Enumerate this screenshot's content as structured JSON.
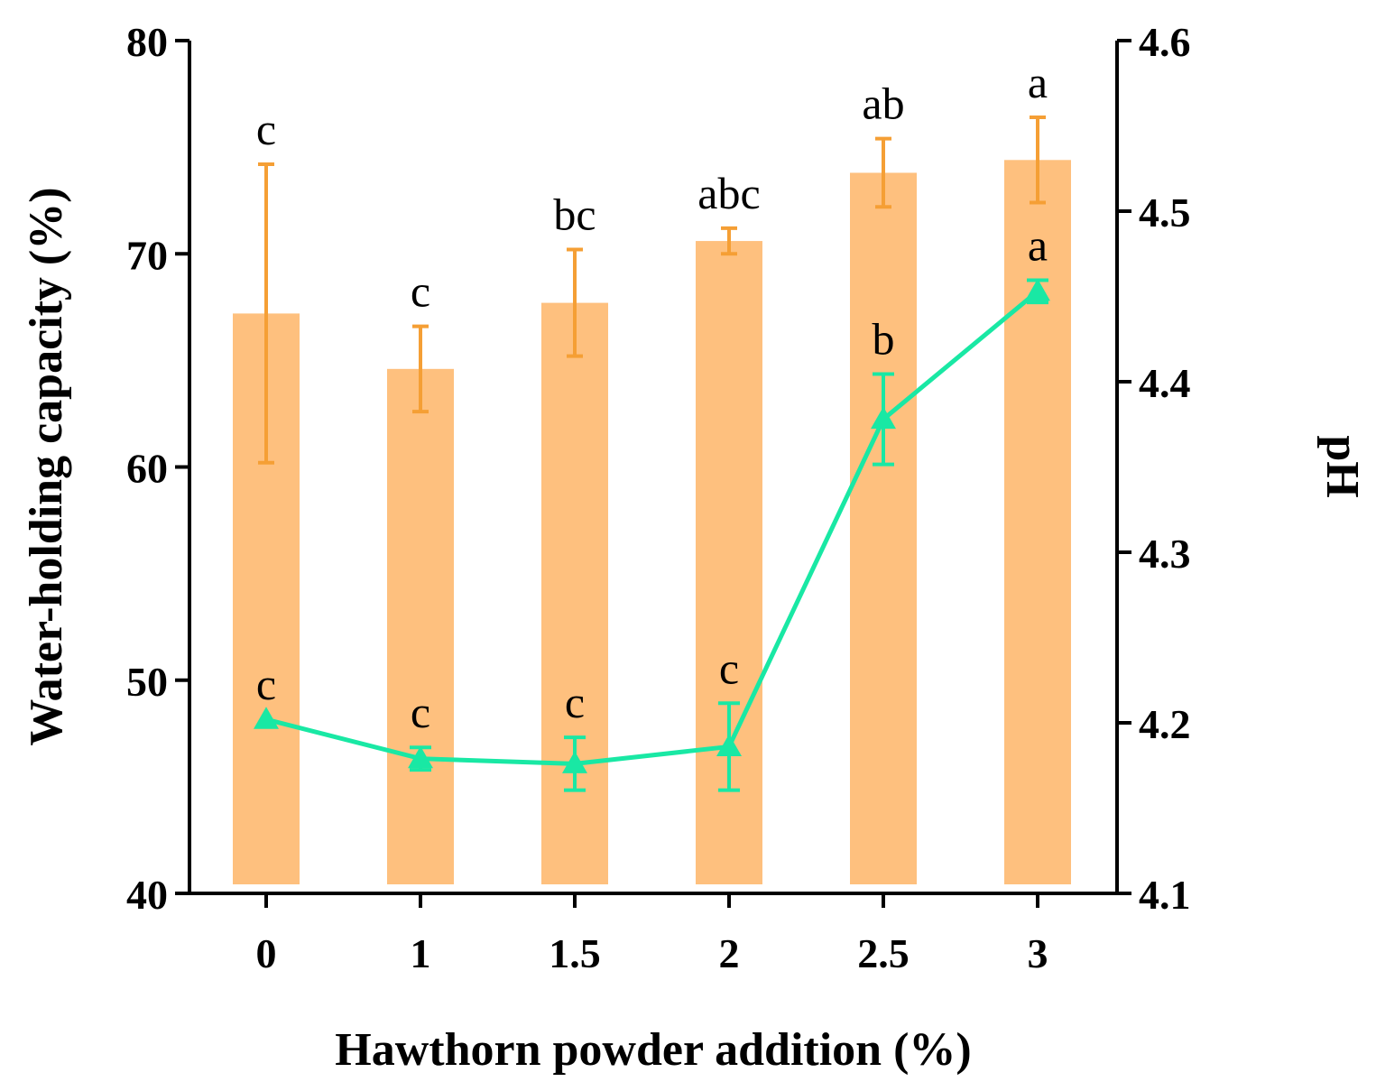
{
  "chart_data": {
    "type": "bar",
    "xlabel": "Hawthorn powder addition (%)",
    "ylabel": "Water-holding capacity (%)",
    "y2label": "pH",
    "categories": [
      "0",
      "1",
      "1.5",
      "2",
      "2.5",
      "3"
    ],
    "ylim": [
      40,
      80
    ],
    "y2lim": [
      4.1,
      4.6
    ],
    "yticks": [
      "40",
      "50",
      "60",
      "70",
      "80"
    ],
    "y2ticks": [
      "4.1",
      "4.2",
      "4.3",
      "4.4",
      "4.5",
      "4.6"
    ],
    "grid": false,
    "series": [
      {
        "kind": "bar",
        "axis": "left",
        "color": "#fec07e",
        "error_color": "#f59f35",
        "values": [
          67.2,
          64.6,
          67.7,
          70.6,
          73.8,
          74.4
        ],
        "errors": [
          7.0,
          2.0,
          2.5,
          0.6,
          1.6,
          2.0
        ],
        "labels": [
          "c",
          "c",
          "bc",
          "abc",
          "ab",
          "a"
        ]
      },
      {
        "kind": "line",
        "axis": "right",
        "marker": "triangle",
        "color": "#19e8a4",
        "values": [
          4.202,
          4.179,
          4.176,
          4.186,
          4.378,
          4.453
        ],
        "errors": [
          0.0,
          0.0066,
          0.0155,
          0.0255,
          0.0265,
          0.0065
        ],
        "labels": [
          "c",
          "c",
          "c",
          "c",
          "b",
          "a"
        ]
      }
    ]
  }
}
